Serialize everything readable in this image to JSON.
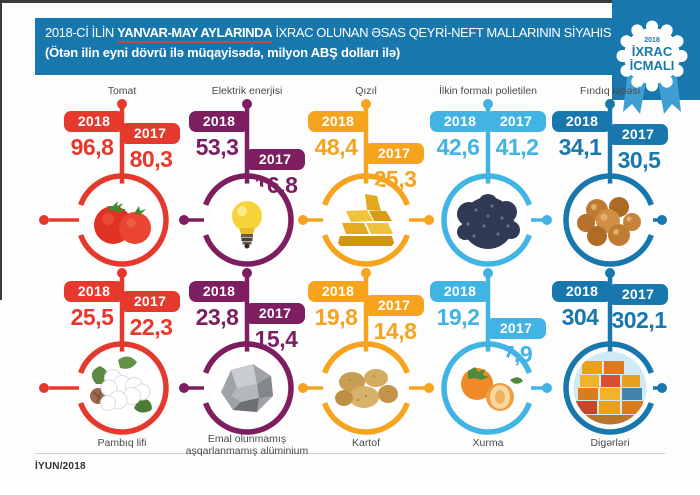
{
  "header": {
    "title_pre": "2018-Cİ İLİN ",
    "title_highlight": "YANVAR-MAY AYLARINDA",
    "title_post": " İXRAC OLUNAN ƏSAS QEYRİ-NEFT MALLARININ SİYAHISI",
    "subtitle": "(Ötən ilin eyni dövrü ilə müqayisədə, milyon ABŞ dolları ilə)",
    "bg_color": "#1878ad",
    "underline_color": "#c9473a"
  },
  "badge": {
    "year": "2018",
    "line1": "İXRAC",
    "line2": "İCMALI"
  },
  "year_labels": {
    "y2018": "2018",
    "y2017": "2017"
  },
  "footer": {
    "date": "İYUN/2018"
  },
  "items": [
    {
      "label": "Tomat",
      "v2018": "96,8",
      "v2017": "80,3",
      "color": "#e5392e",
      "image": "tomato"
    },
    {
      "label": "Elektrik enerjisi",
      "v2018": "53,3",
      "v2017": "16,8",
      "color": "#7d1e60",
      "image": "bulb"
    },
    {
      "label": "Qızıl",
      "v2018": "48,4",
      "v2017": "25,3",
      "color": "#f6a31e",
      "image": "gold"
    },
    {
      "label": "İlkin formalı polietilen",
      "v2018": "42,6",
      "v2017": "41,2",
      "color": "#41b4e4",
      "image": "granules"
    },
    {
      "label": "Fındıq ləpəsi",
      "v2018": "34,1",
      "v2017": "30,5",
      "color": "#1878ad",
      "image": "hazelnut"
    },
    {
      "label": "Pambıq lifi",
      "v2018": "25,5",
      "v2017": "22,3",
      "color": "#e5392e",
      "image": "cotton"
    },
    {
      "label": "Emal olunmamış\naşqarlanmamış alüminium",
      "v2018": "23,8",
      "v2017": "15,4",
      "color": "#7d1e60",
      "image": "aluminium"
    },
    {
      "label": "Kartof",
      "v2018": "19,8",
      "v2017": "14,8",
      "color": "#f6a31e",
      "image": "potato"
    },
    {
      "label": "Xurma",
      "v2018": "19,2",
      "v2017": "7,9",
      "color": "#41b4e4",
      "image": "persimmon"
    },
    {
      "label": "Digərləri",
      "v2018": "304",
      "v2017": "302,1",
      "color": "#1878ad",
      "image": "containers"
    }
  ],
  "chart_data": {
    "type": "bar",
    "title": "2018-Cİ İLİN YANVAR-MAY AYLARINDA İXRAC OLUNAN ƏSAS QEYRİ-NEFT MALLARININ SİYAHISI",
    "subtitle": "(Ötən ilin eyni dövrü ilə müqayisədə, milyon ABŞ dolları ilə)",
    "unit": "milyon ABŞ dolları",
    "categories": [
      "Tomat",
      "Elektrik enerjisi",
      "Qızıl",
      "İlkin formalı polietilen",
      "Fındıq ləpəsi",
      "Pambıq lifi",
      "Emal olunmamış aşqarlanmamış alüminium",
      "Kartof",
      "Xurma",
      "Digərləri"
    ],
    "series": [
      {
        "name": "2018",
        "values": [
          96.8,
          53.3,
          48.4,
          42.6,
          34.1,
          25.5,
          23.8,
          19.8,
          19.2,
          304
        ]
      },
      {
        "name": "2017",
        "values": [
          80.3,
          16.8,
          25.3,
          41.2,
          30.5,
          22.3,
          15.4,
          14.8,
          7.9,
          302.1
        ]
      }
    ]
  }
}
